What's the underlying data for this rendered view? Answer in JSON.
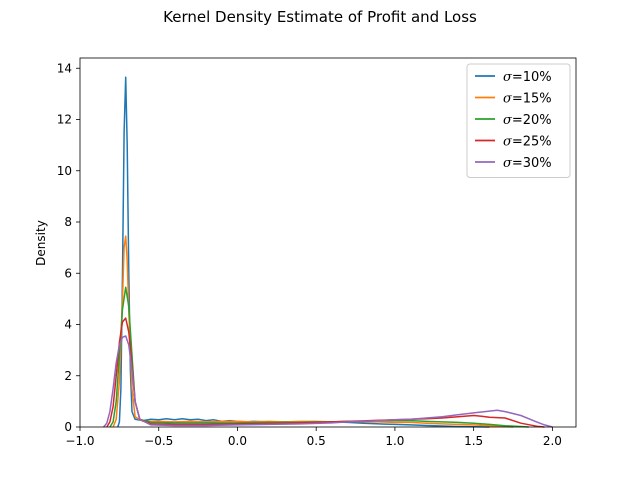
{
  "chart_data": {
    "type": "line",
    "title": "Kernel Density Estimate of Profit and Loss",
    "xlabel": "",
    "ylabel": "Density",
    "xlim": [
      -1.0,
      2.15
    ],
    "ylim": [
      0,
      14.4
    ],
    "xticks": [
      -1.0,
      -0.5,
      0.0,
      0.5,
      1.0,
      1.5,
      2.0
    ],
    "xtick_labels": [
      "−1.0",
      "−0.5",
      "0.0",
      "0.5",
      "1.0",
      "1.5",
      "2.0"
    ],
    "yticks": [
      0,
      2,
      4,
      6,
      8,
      10,
      12,
      14
    ],
    "ytick_labels": [
      "0",
      "2",
      "4",
      "6",
      "8",
      "10",
      "12",
      "14"
    ],
    "grid": false,
    "legend_position": "top-right",
    "series": [
      {
        "name": "σ=10%",
        "color": "#1f77b4",
        "points": [
          [
            -0.76,
            0
          ],
          [
            -0.75,
            0.2
          ],
          [
            -0.74,
            1.5
          ],
          [
            -0.73,
            6
          ],
          [
            -0.72,
            11.5
          ],
          [
            -0.71,
            13.65
          ],
          [
            -0.7,
            11
          ],
          [
            -0.69,
            6
          ],
          [
            -0.68,
            2.2
          ],
          [
            -0.67,
            0.6
          ],
          [
            -0.65,
            0.3
          ],
          [
            -0.6,
            0.25
          ],
          [
            -0.55,
            0.3
          ],
          [
            -0.5,
            0.28
          ],
          [
            -0.45,
            0.32
          ],
          [
            -0.4,
            0.28
          ],
          [
            -0.35,
            0.32
          ],
          [
            -0.3,
            0.28
          ],
          [
            -0.25,
            0.3
          ],
          [
            -0.2,
            0.25
          ],
          [
            -0.15,
            0.28
          ],
          [
            -0.1,
            0.22
          ],
          [
            -0.05,
            0.25
          ],
          [
            0.0,
            0.22
          ],
          [
            0.05,
            0.2
          ],
          [
            0.1,
            0.22
          ],
          [
            0.2,
            0.2
          ],
          [
            0.3,
            0.2
          ],
          [
            0.4,
            0.2
          ],
          [
            0.5,
            0.18
          ],
          [
            0.6,
            0.2
          ],
          [
            0.7,
            0.18
          ],
          [
            0.8,
            0.15
          ],
          [
            0.9,
            0.12
          ],
          [
            1.0,
            0.1
          ],
          [
            1.1,
            0.08
          ],
          [
            1.2,
            0.06
          ],
          [
            1.3,
            0.04
          ],
          [
            1.4,
            0.02
          ],
          [
            1.5,
            0.01
          ],
          [
            1.6,
            0
          ]
        ]
      },
      {
        "name": "σ=15%",
        "color": "#ff7f0e",
        "points": [
          [
            -0.79,
            0
          ],
          [
            -0.77,
            0.3
          ],
          [
            -0.75,
            1.8
          ],
          [
            -0.73,
            5
          ],
          [
            -0.72,
            7
          ],
          [
            -0.71,
            7.45
          ],
          [
            -0.7,
            6.5
          ],
          [
            -0.69,
            4.5
          ],
          [
            -0.67,
            1.5
          ],
          [
            -0.65,
            0.4
          ],
          [
            -0.6,
            0.22
          ],
          [
            -0.5,
            0.22
          ],
          [
            -0.4,
            0.2
          ],
          [
            -0.3,
            0.22
          ],
          [
            -0.2,
            0.2
          ],
          [
            -0.1,
            0.22
          ],
          [
            0.0,
            0.22
          ],
          [
            0.1,
            0.2
          ],
          [
            0.2,
            0.22
          ],
          [
            0.3,
            0.2
          ],
          [
            0.4,
            0.22
          ],
          [
            0.5,
            0.22
          ],
          [
            0.6,
            0.2
          ],
          [
            0.7,
            0.22
          ],
          [
            0.8,
            0.2
          ],
          [
            0.9,
            0.2
          ],
          [
            1.0,
            0.18
          ],
          [
            1.1,
            0.18
          ],
          [
            1.2,
            0.15
          ],
          [
            1.3,
            0.12
          ],
          [
            1.4,
            0.1
          ],
          [
            1.5,
            0.08
          ],
          [
            1.6,
            0.05
          ],
          [
            1.7,
            0.02
          ],
          [
            1.75,
            0
          ]
        ]
      },
      {
        "name": "σ=20%",
        "color": "#2ca02c",
        "points": [
          [
            -0.81,
            0
          ],
          [
            -0.79,
            0.2
          ],
          [
            -0.77,
            1
          ],
          [
            -0.75,
            2.8
          ],
          [
            -0.73,
            4.6
          ],
          [
            -0.71,
            5.45
          ],
          [
            -0.69,
            4.7
          ],
          [
            -0.67,
            2.8
          ],
          [
            -0.65,
            1
          ],
          [
            -0.62,
            0.3
          ],
          [
            -0.55,
            0.18
          ],
          [
            -0.4,
            0.16
          ],
          [
            -0.2,
            0.16
          ],
          [
            0.0,
            0.16
          ],
          [
            0.2,
            0.18
          ],
          [
            0.4,
            0.18
          ],
          [
            0.5,
            0.2
          ],
          [
            0.6,
            0.2
          ],
          [
            0.7,
            0.22
          ],
          [
            0.8,
            0.22
          ],
          [
            0.9,
            0.25
          ],
          [
            1.0,
            0.25
          ],
          [
            1.1,
            0.25
          ],
          [
            1.2,
            0.22
          ],
          [
            1.3,
            0.2
          ],
          [
            1.4,
            0.18
          ],
          [
            1.5,
            0.15
          ],
          [
            1.6,
            0.1
          ],
          [
            1.7,
            0.05
          ],
          [
            1.8,
            0.02
          ],
          [
            1.85,
            0
          ]
        ]
      },
      {
        "name": "σ=25%",
        "color": "#d62728",
        "points": [
          [
            -0.83,
            0
          ],
          [
            -0.81,
            0.2
          ],
          [
            -0.79,
            0.8
          ],
          [
            -0.77,
            2
          ],
          [
            -0.75,
            3.3
          ],
          [
            -0.73,
            4.1
          ],
          [
            -0.71,
            4.25
          ],
          [
            -0.69,
            3.7
          ],
          [
            -0.67,
            2.4
          ],
          [
            -0.65,
            1
          ],
          [
            -0.62,
            0.3
          ],
          [
            -0.55,
            0.12
          ],
          [
            -0.4,
            0.1
          ],
          [
            -0.2,
            0.1
          ],
          [
            0.0,
            0.12
          ],
          [
            0.2,
            0.14
          ],
          [
            0.4,
            0.16
          ],
          [
            0.5,
            0.18
          ],
          [
            0.6,
            0.2
          ],
          [
            0.7,
            0.22
          ],
          [
            0.8,
            0.24
          ],
          [
            0.9,
            0.26
          ],
          [
            1.0,
            0.28
          ],
          [
            1.1,
            0.3
          ],
          [
            1.2,
            0.32
          ],
          [
            1.3,
            0.35
          ],
          [
            1.4,
            0.4
          ],
          [
            1.5,
            0.45
          ],
          [
            1.55,
            0.42
          ],
          [
            1.6,
            0.38
          ],
          [
            1.7,
            0.35
          ],
          [
            1.8,
            0.15
          ],
          [
            1.9,
            0.03
          ],
          [
            1.95,
            0
          ]
        ]
      },
      {
        "name": "σ=30%",
        "color": "#9467bd",
        "points": [
          [
            -0.85,
            0
          ],
          [
            -0.83,
            0.15
          ],
          [
            -0.81,
            0.6
          ],
          [
            -0.79,
            1.5
          ],
          [
            -0.77,
            2.5
          ],
          [
            -0.75,
            3.2
          ],
          [
            -0.73,
            3.5
          ],
          [
            -0.71,
            3.55
          ],
          [
            -0.69,
            3.2
          ],
          [
            -0.67,
            2.2
          ],
          [
            -0.65,
            1
          ],
          [
            -0.62,
            0.3
          ],
          [
            -0.55,
            0.08
          ],
          [
            -0.4,
            0.06
          ],
          [
            -0.2,
            0.06
          ],
          [
            0.0,
            0.08
          ],
          [
            0.2,
            0.1
          ],
          [
            0.4,
            0.12
          ],
          [
            0.5,
            0.14
          ],
          [
            0.6,
            0.16
          ],
          [
            0.7,
            0.2
          ],
          [
            0.8,
            0.22
          ],
          [
            0.9,
            0.25
          ],
          [
            1.0,
            0.28
          ],
          [
            1.1,
            0.3
          ],
          [
            1.2,
            0.35
          ],
          [
            1.3,
            0.4
          ],
          [
            1.4,
            0.48
          ],
          [
            1.5,
            0.55
          ],
          [
            1.6,
            0.62
          ],
          [
            1.65,
            0.65
          ],
          [
            1.7,
            0.6
          ],
          [
            1.8,
            0.45
          ],
          [
            1.9,
            0.2
          ],
          [
            1.95,
            0.08
          ],
          [
            2.0,
            0
          ]
        ]
      }
    ]
  }
}
